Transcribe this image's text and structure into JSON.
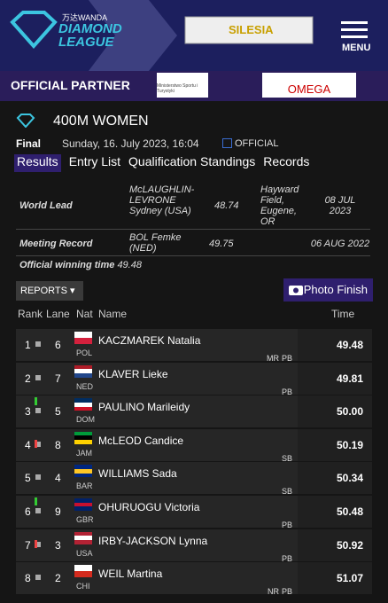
{
  "header": {
    "brand_top": "万达WANDA",
    "brand": "DIAMOND LEAGUE",
    "sponsor": "SILESIA",
    "menu": "MENU"
  },
  "partner": {
    "title": "OFFICIAL PARTNER",
    "ministry": "Ministerstwo Sportu i Turystyki",
    "omega": "OMEGA"
  },
  "event": {
    "title": "400M WOMEN",
    "round": "Final",
    "date": "Sunday, 16. July 2023, 16:04",
    "status": "OFFICIAL"
  },
  "tabs": [
    "Results",
    "Entry List",
    "Qualification Standings",
    "Records"
  ],
  "records": [
    {
      "label": "World Lead",
      "athlete": "McLAUGHLIN-LEVRONE Sydney (USA)",
      "mark": "48.74",
      "venue": "Hayward Field, Eugene, OR",
      "date": "08 JUL 2023"
    },
    {
      "label": "Meeting Record",
      "athlete": "BOL Femke (NED)",
      "mark": "49.75",
      "date": "06 AUG 2022"
    }
  ],
  "winning_time": {
    "label": "Official winning time",
    "value": "49.48"
  },
  "buttons": {
    "reports": "REPORTS",
    "photo_finish": "Photo Finish"
  },
  "table": {
    "headers": [
      "Rank",
      "Lane",
      "Nat",
      "Name",
      "Time"
    ],
    "rows": [
      {
        "rank": "1",
        "lane": "6",
        "nat": "POL",
        "name": "KACZMAREK Natalia",
        "time": "49.48",
        "badges": [
          "MR",
          "PB"
        ]
      },
      {
        "rank": "2",
        "lane": "7",
        "nat": "NED",
        "name": "KLAVER Lieke",
        "time": "49.81",
        "badges": [
          "PB"
        ]
      },
      {
        "rank": "3",
        "trend": "up",
        "lane": "5",
        "nat": "DOM",
        "name": "PAULINO Marileidy",
        "time": "50.00",
        "badges": []
      },
      {
        "rank": "4",
        "trend": "down",
        "lane": "8",
        "nat": "JAM",
        "name": "McLEOD Candice",
        "time": "50.19",
        "badges": [
          "SB"
        ]
      },
      {
        "rank": "5",
        "lane": "4",
        "nat": "BAR",
        "name": "WILLIAMS Sada",
        "time": "50.34",
        "badges": [
          "SB"
        ]
      },
      {
        "rank": "6",
        "trend": "up",
        "lane": "9",
        "nat": "GBR",
        "name": "OHURUOGU Victoria",
        "time": "50.48",
        "badges": [
          "PB"
        ]
      },
      {
        "rank": "7",
        "trend": "down",
        "lane": "3",
        "nat": "USA",
        "name": "IRBY-JACKSON Lynna",
        "time": "50.92",
        "badges": [
          "PB"
        ]
      },
      {
        "rank": "8",
        "lane": "2",
        "nat": "CHI",
        "name": "WEIL Martina",
        "time": "51.07",
        "badges": [
          "NR",
          "PB"
        ]
      }
    ]
  }
}
